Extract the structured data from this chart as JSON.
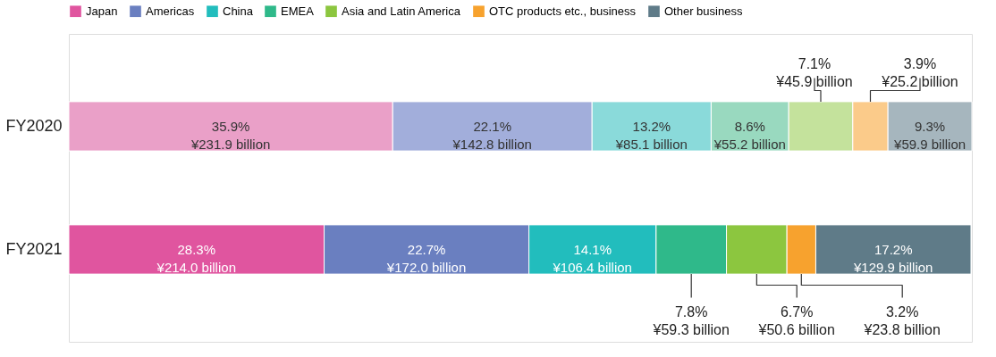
{
  "chart_data": {
    "type": "bar",
    "orientation": "horizontal",
    "stacked": true,
    "categories": [
      "FY2020",
      "FY2021"
    ],
    "tick_labels": "y",
    "legend": "top left",
    "series": [
      {
        "name": "Japan",
        "color": "#e0559f",
        "colors": [
          "#eaa0c8",
          "#e0559f"
        ],
        "values": [
          35.9,
          28.3
        ],
        "value_labels": [
          "35.9%\n¥231.9 billion",
          "28.3%\n¥214.0 billion"
        ]
      },
      {
        "name": "Americas",
        "color": "#6a7fc0",
        "colors": [
          "#a2aedb",
          "#6a7fc0"
        ],
        "values": [
          22.1,
          22.7
        ],
        "value_labels": [
          "22.1%\n¥142.8 billion",
          "22.7%\n¥172.0 billion"
        ]
      },
      {
        "name": "China",
        "color": "#22bdbd",
        "colors": [
          "#8adada",
          "#22bdbd"
        ],
        "values": [
          13.2,
          14.1
        ],
        "value_labels": [
          "13.2%\n¥85.1 billion",
          "14.1%\n¥106.4 billion"
        ]
      },
      {
        "name": "EMEA",
        "color": "#2fb98a",
        "colors": [
          "#99d9bf",
          "#2fb98a"
        ],
        "values": [
          8.6,
          7.8
        ],
        "value_labels": [
          "8.6%\n¥55.2 billion",
          "7.8%\n¥59.3 billion"
        ]
      },
      {
        "name": "Asia and Latin America",
        "color": "#8cc63f",
        "colors": [
          "#c4e29c",
          "#8cc63f"
        ],
        "values": [
          7.1,
          6.7
        ],
        "value_labels": [
          "7.1%\n¥45.9 billion",
          "6.7%\n¥50.6 billion"
        ]
      },
      {
        "name": "OTC products etc., business",
        "color": "#f7a22e",
        "colors": [
          "#fbcb8a",
          "#f7a22e"
        ],
        "values": [
          3.9,
          3.2
        ],
        "value_labels": [
          "3.9%\n¥25.2 billion",
          "3.2%\n¥23.8 billion"
        ]
      },
      {
        "name": "Other business",
        "color": "#5f7b88",
        "colors": [
          "#a6b6be",
          "#5f7b88"
        ],
        "values": [
          9.3,
          17.2
        ],
        "value_labels": [
          "9.3%\n¥59.9 billion",
          "17.2%\n¥129.9 billion"
        ]
      }
    ]
  }
}
